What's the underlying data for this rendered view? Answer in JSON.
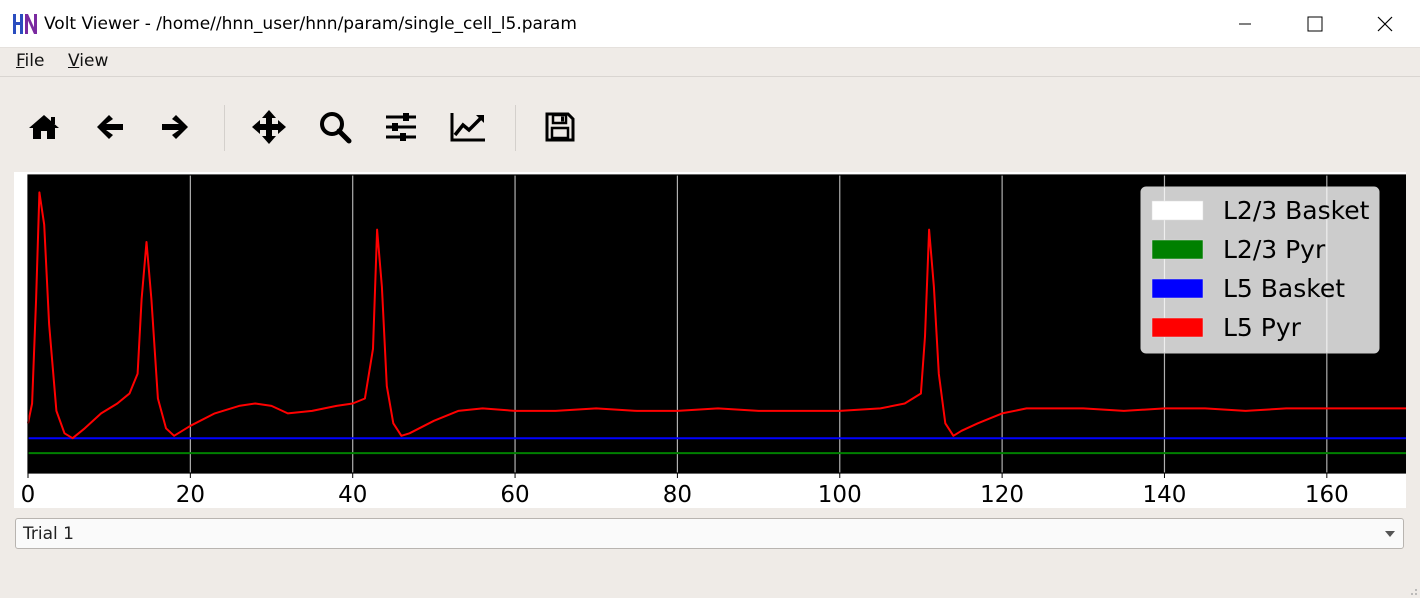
{
  "window": {
    "title": "Volt Viewer - /home//hnn_user/hnn/param/single_cell_l5.param"
  },
  "menu": {
    "file": {
      "underlined": "F",
      "rest": "ile"
    },
    "view": {
      "underlined": "V",
      "rest": "iew"
    }
  },
  "toolbar": {
    "icons": [
      "home-icon",
      "back-arrow-icon",
      "forward-arrow-icon",
      "pan-move-icon",
      "zoom-icon",
      "configure-subplots-icon",
      "edit-axis-icon",
      "save-icon"
    ]
  },
  "colors": {
    "plot_bg": "#000000",
    "grid": "#b0b0b0",
    "l23_basket": "#ffffff",
    "l23_pyr": "#008000",
    "l5_basket": "#0000ff",
    "l5_pyr": "#ff0000",
    "legend_bg": "#ffffff"
  },
  "chart_data": {
    "type": "line",
    "title": "",
    "xlabel": "",
    "ylabel": "",
    "xlim": [
      0,
      170
    ],
    "xticks": [
      0,
      20,
      40,
      60,
      80,
      100,
      120,
      140,
      160
    ],
    "ylim": [
      -80,
      40
    ],
    "grid": "vertical",
    "legend_position": "top-right",
    "legend": [
      "L2/3 Basket",
      "L2/3 Pyr",
      "L5 Basket",
      "L5 Pyr"
    ],
    "series": [
      {
        "name": "L2/3 Pyr",
        "x": [
          0,
          170
        ],
        "y": [
          -72,
          -72
        ]
      },
      {
        "name": "L5 Basket",
        "x": [
          0,
          170
        ],
        "y": [
          -66,
          -66
        ]
      },
      {
        "name": "L5 Pyr",
        "x": [
          0,
          0.5,
          1,
          1.4,
          2,
          2.6,
          3.5,
          4.5,
          5.5,
          7,
          9,
          11,
          12.5,
          13.5,
          14,
          14.6,
          15.2,
          16,
          17,
          18,
          20,
          23,
          26,
          28,
          30,
          32,
          35,
          38,
          40,
          41.5,
          42.5,
          43,
          43.6,
          44.2,
          45,
          46,
          47,
          50,
          53,
          56,
          60,
          65,
          70,
          75,
          80,
          85,
          90,
          95,
          100,
          105,
          108,
          110,
          110.5,
          111,
          111.6,
          112.2,
          113,
          114,
          115,
          117,
          120,
          123,
          126,
          130,
          135,
          140,
          145,
          150,
          155,
          160,
          165,
          170
        ],
        "y": [
          -60,
          -52,
          -10,
          33,
          20,
          -20,
          -55,
          -64,
          -66,
          -62,
          -56,
          -52,
          -48,
          -40,
          -10,
          13,
          -10,
          -50,
          -62,
          -65,
          -61,
          -56,
          -53,
          -52,
          -53,
          -56,
          -55,
          -53,
          -52,
          -50,
          -30,
          18,
          -5,
          -45,
          -60,
          -65,
          -64,
          -59,
          -55,
          -54,
          -55,
          -55,
          -54,
          -55,
          -55,
          -54,
          -55,
          -55,
          -55,
          -54,
          -52,
          -48,
          -25,
          18,
          -5,
          -40,
          -60,
          -65,
          -63,
          -60,
          -56,
          -54,
          -54,
          -54,
          -55,
          -54,
          -54,
          -55,
          -54,
          -54,
          -54,
          -54
        ]
      }
    ]
  },
  "trial": {
    "selected": "Trial 1"
  }
}
